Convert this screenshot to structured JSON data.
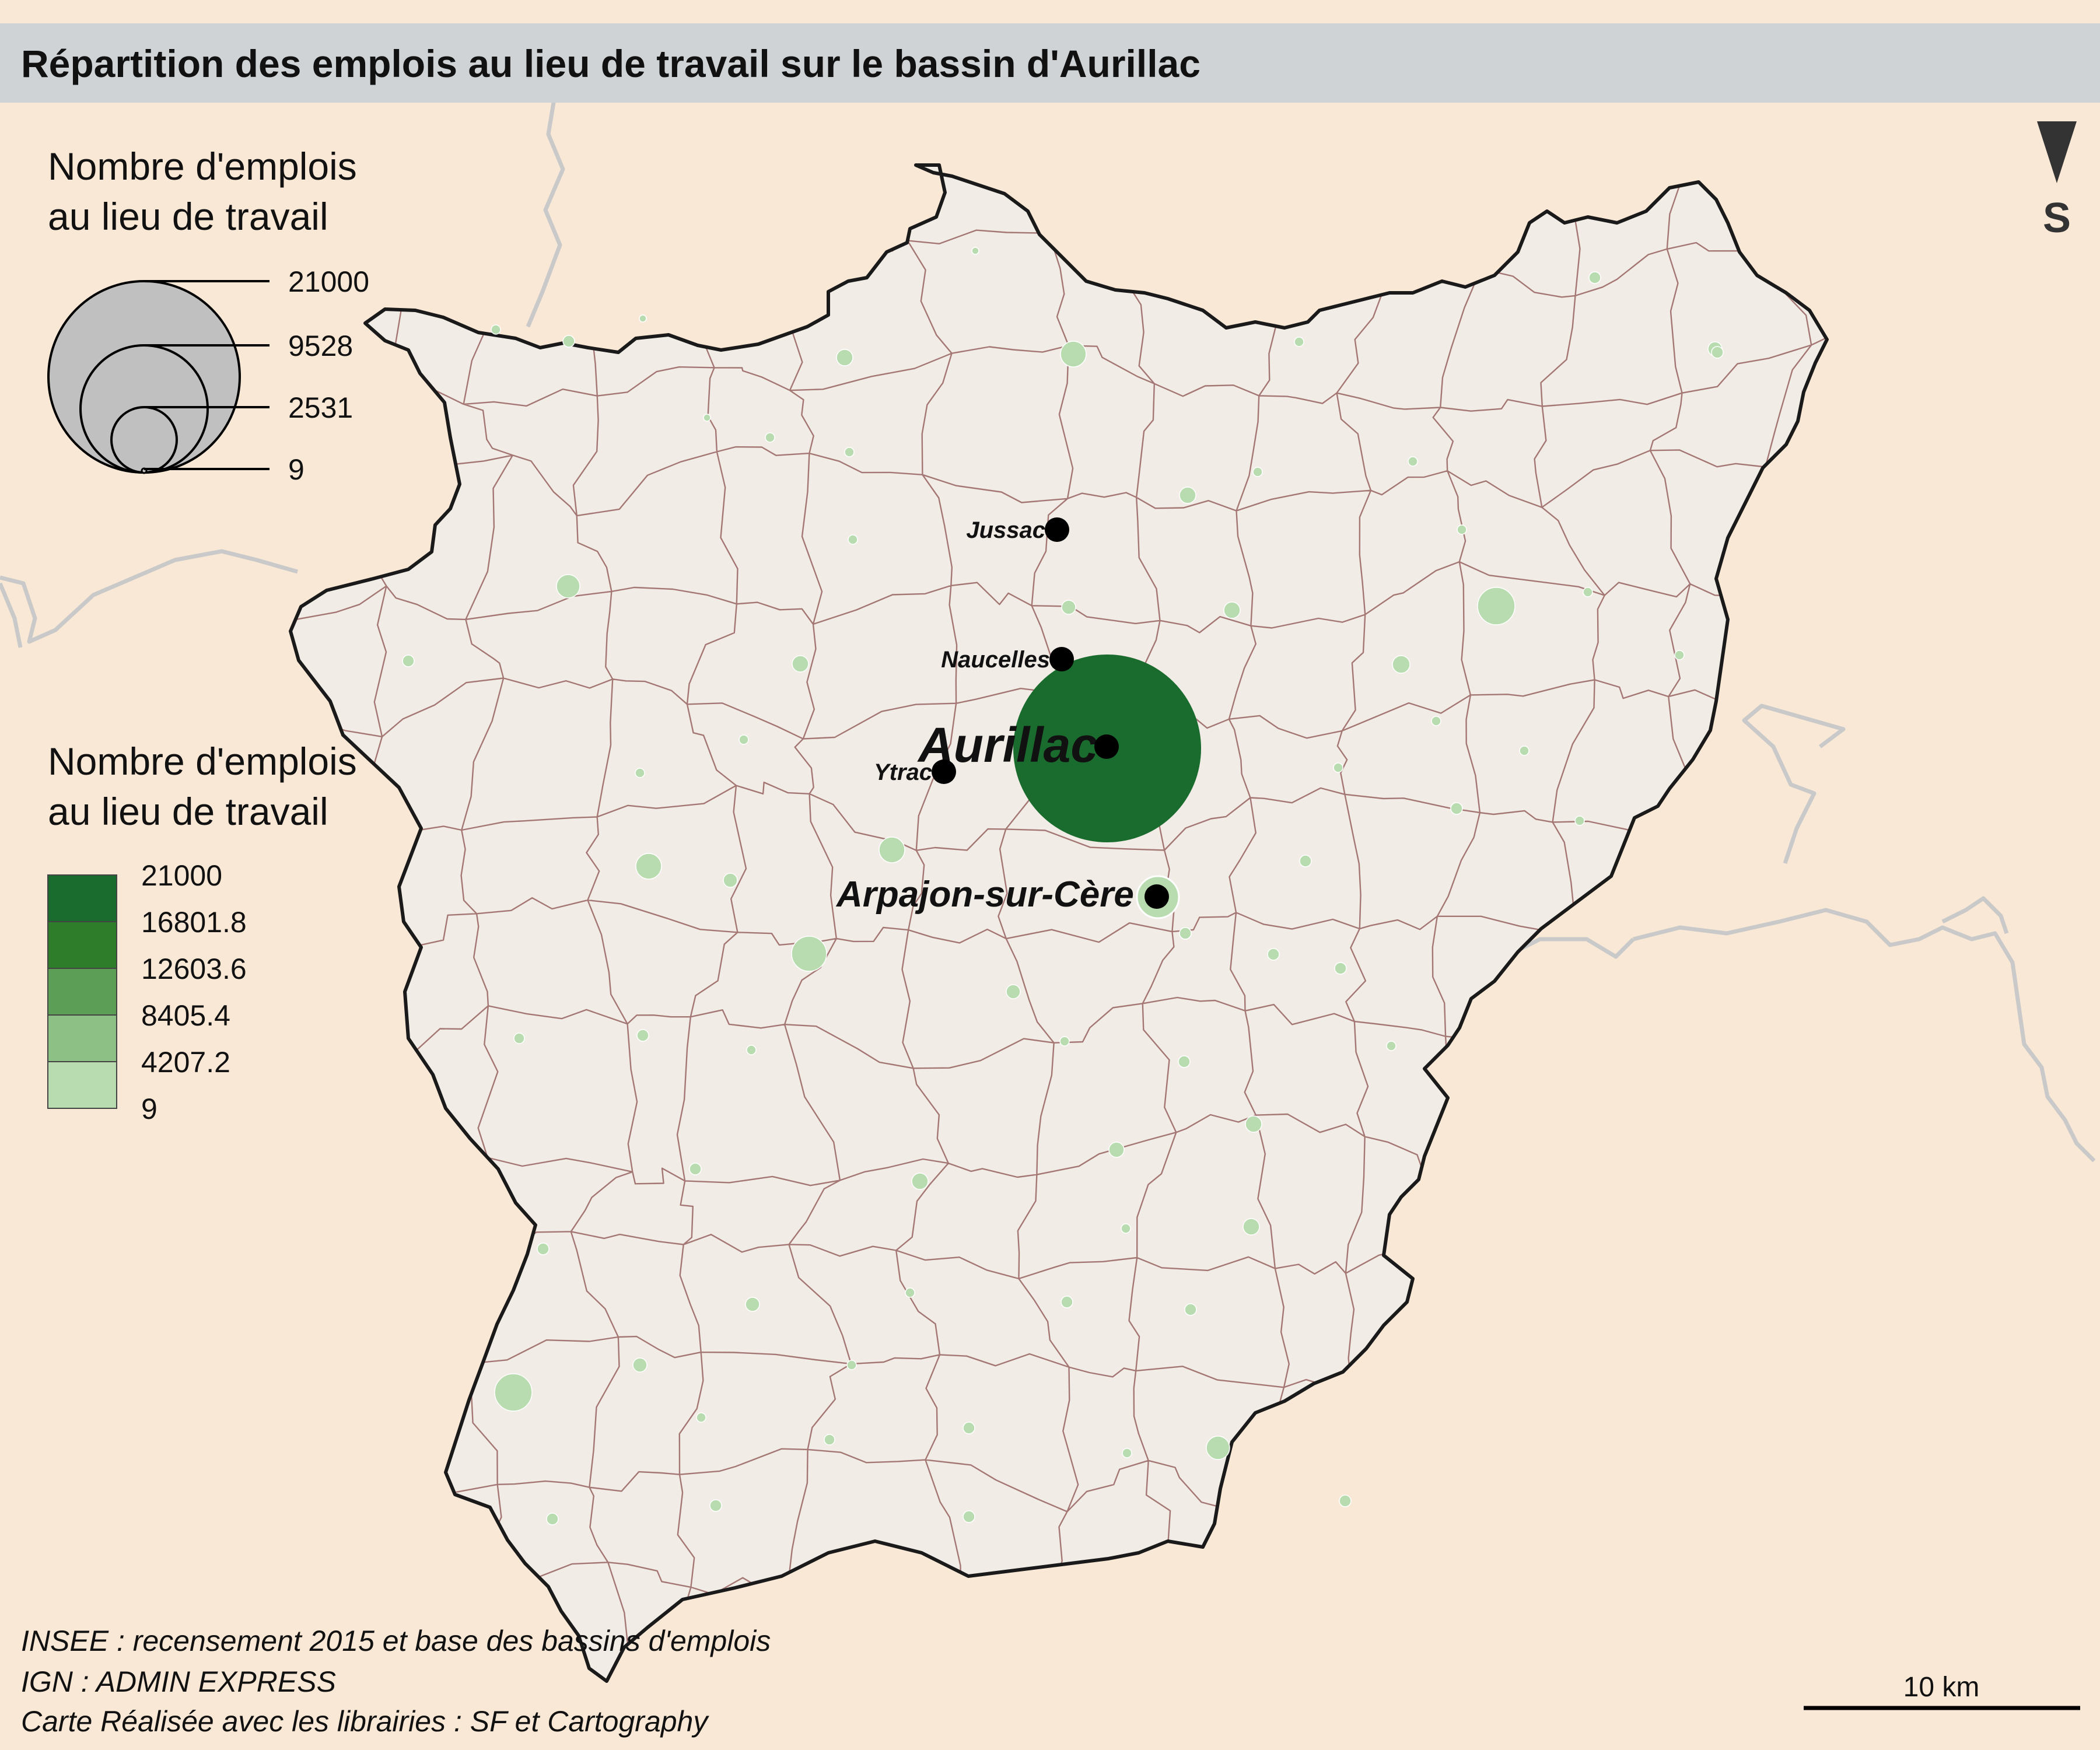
{
  "title": "Répartition des emplois au lieu de travail sur  le bassin d'Aurillac",
  "colors": {
    "background": "#f9e8d6",
    "title_band": "#cfd3d6",
    "region_fill": "#f1ede6",
    "border": "#1a1a1a",
    "commune_lines": "#8a4e4e",
    "dept_lines": "#c9c9c9",
    "proportional_symbol": "#c0c0c0",
    "choropleth": [
      "#b8dcb0",
      "#8cc084",
      "#5c9e55",
      "#2e7d2a",
      "#1a6b2e"
    ]
  },
  "legend_size": {
    "title_line1": "Nombre d'emplois",
    "title_line2": "au lieu de travail",
    "values": [
      "21000",
      "9528",
      "2531",
      "9"
    ]
  },
  "legend_color": {
    "title_line1": "Nombre d'emplois",
    "title_line2": "au lieu de travail",
    "breaks": [
      "21000",
      "16801.8",
      "12603.6",
      "8405.4",
      "4207.2",
      "9"
    ]
  },
  "cities": [
    {
      "name": "Jussac",
      "class": "small"
    },
    {
      "name": "Naucelles",
      "class": "small"
    },
    {
      "name": "Aurillac",
      "class": "big"
    },
    {
      "name": "Ytrac",
      "class": "small"
    },
    {
      "name": "Arpajon-sur-Cère",
      "class": "mid"
    }
  ],
  "north_arrow": {
    "label": "S",
    "icon": "north-arrow-icon"
  },
  "scale_bar": {
    "label": "10 km"
  },
  "sources": [
    "INSEE : recensement 2015 et base des bassins d'emplois",
    "IGN : ADMIN EXPRESS",
    "Carte Réalisée avec les librairies : SF et Cartography"
  ]
}
